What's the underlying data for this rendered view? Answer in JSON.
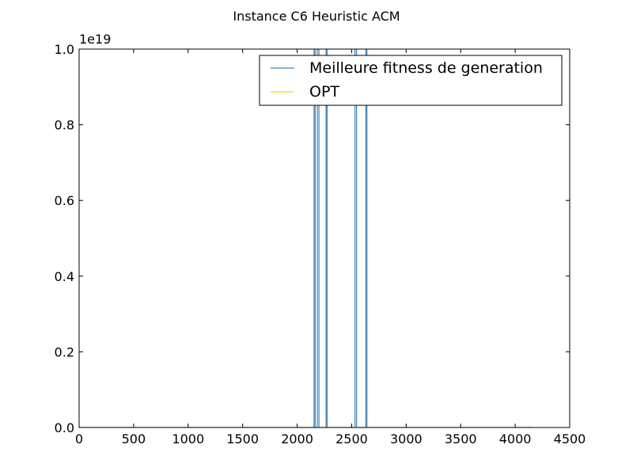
{
  "chart_data": {
    "type": "line",
    "title": "Instance C6 Heuristic ACM",
    "xlabel": "",
    "ylabel": "",
    "xlim": [
      0,
      4500
    ],
    "ylim": [
      0,
      1e+19
    ],
    "y_offset_label": "1e19",
    "x_ticks": [
      0,
      500,
      1000,
      1500,
      2000,
      2500,
      3000,
      3500,
      4000,
      4500
    ],
    "x_tick_labels": [
      "0",
      "500",
      "1000",
      "1500",
      "2000",
      "2500",
      "3000",
      "3500",
      "4000",
      "4500"
    ],
    "y_ticks": [
      0,
      2e+18,
      4e+18,
      6e+18,
      8e+18,
      1e+19
    ],
    "y_tick_labels": [
      "0.0",
      "0.2",
      "0.4",
      "0.6",
      "0.8",
      "1.0"
    ],
    "grid": false,
    "legend_position": "top-right",
    "series": [
      {
        "name": "Meilleure fitness de generation",
        "color": "#4682b4",
        "x": [
          0,
          2155,
          2155,
          2165,
          2165,
          2185,
          2185,
          2200,
          2200,
          2265,
          2265,
          2275,
          2275,
          2530,
          2530,
          2545,
          2545,
          2630,
          2630,
          2640,
          2640,
          4150
        ],
        "y": [
          0,
          0,
          1e+19,
          1e+19,
          0,
          0,
          1e+19,
          1e+19,
          0,
          0,
          1e+19,
          1e+19,
          0,
          0,
          1e+19,
          1e+19,
          0,
          0,
          1e+19,
          1e+19,
          0,
          0
        ]
      },
      {
        "name": "OPT",
        "color": "#ffd700",
        "x": [
          0,
          4150
        ],
        "y": [
          0,
          0
        ]
      }
    ]
  }
}
